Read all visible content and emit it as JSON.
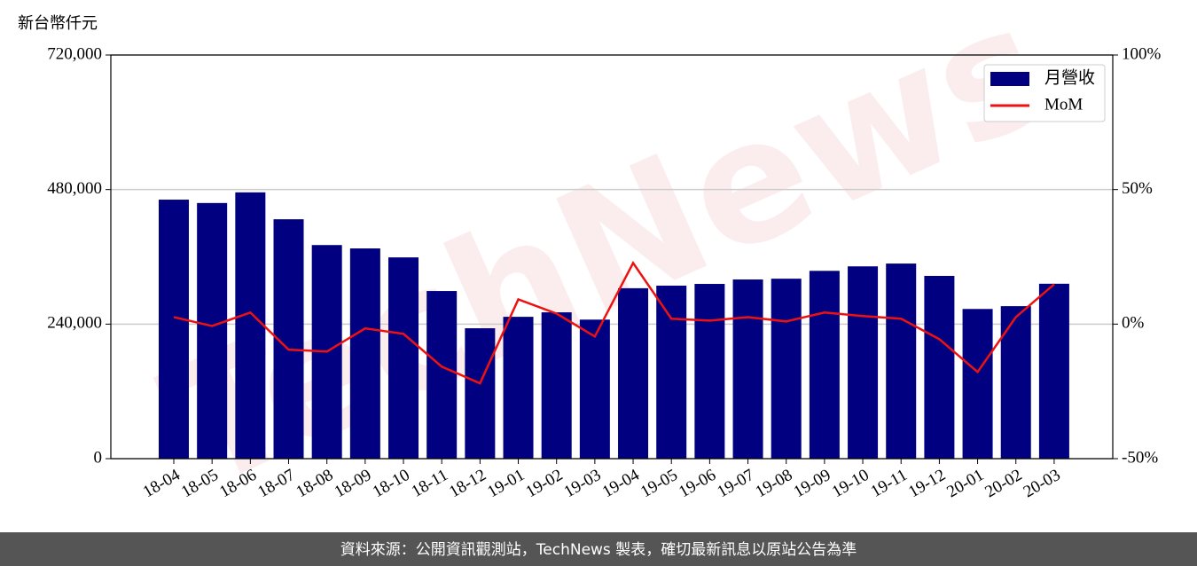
{
  "chart_data": {
    "type": "combo",
    "y_label": "新台幣仟元",
    "watermark": "TechNews",
    "footer": "資料來源：公開資訊觀測站，TechNews 製表，確切最新訊息以原站公告為準",
    "categories": [
      "18-04",
      "18-05",
      "18-06",
      "18-07",
      "18-08",
      "18-09",
      "18-10",
      "18-11",
      "18-12",
      "19-01",
      "19-02",
      "19-03",
      "19-04",
      "19-05",
      "19-06",
      "19-07",
      "19-08",
      "19-09",
      "19-10",
      "19-11",
      "19-12",
      "20-01",
      "20-02",
      "20-03"
    ],
    "series": [
      {
        "name": "月營收",
        "type": "bar",
        "color": "#000080",
        "axis": "y",
        "values": [
          462000,
          456000,
          475000,
          427000,
          381000,
          375000,
          359000,
          299000,
          232600,
          253000,
          261000,
          248000,
          304000,
          308600,
          311700,
          319600,
          321000,
          335000,
          343000,
          348000,
          326000,
          267000,
          272000,
          312000
        ]
      },
      {
        "name": "MoM",
        "type": "line",
        "color": "#ee1111",
        "axis": "y2",
        "values": [
          2.6,
          -0.7,
          4.3,
          -9.5,
          -10.2,
          -1.6,
          -3.6,
          -15.8,
          -22,
          9.2,
          3.9,
          -4.6,
          22.7,
          2,
          1.3,
          2.6,
          1,
          4.3,
          3,
          2,
          -5.6,
          -17.8,
          2.6,
          14.8
        ]
      }
    ],
    "ylim": [
      0,
      720000
    ],
    "yticks": [
      0,
      {
        "value": 240000,
        "label": "240,000"
      },
      {
        "value": 480000,
        "label": "480,000"
      },
      {
        "value": 720000,
        "label": "720,000"
      }
    ],
    "y2lim": [
      -50,
      100
    ],
    "y2ticks": [
      {
        "value": -50,
        "label": "-50%"
      },
      {
        "value": 0,
        "label": "0%"
      },
      {
        "value": 50,
        "label": "50%"
      },
      {
        "value": 100,
        "label": "100%"
      }
    ],
    "grid": true,
    "legend": "upper right"
  }
}
